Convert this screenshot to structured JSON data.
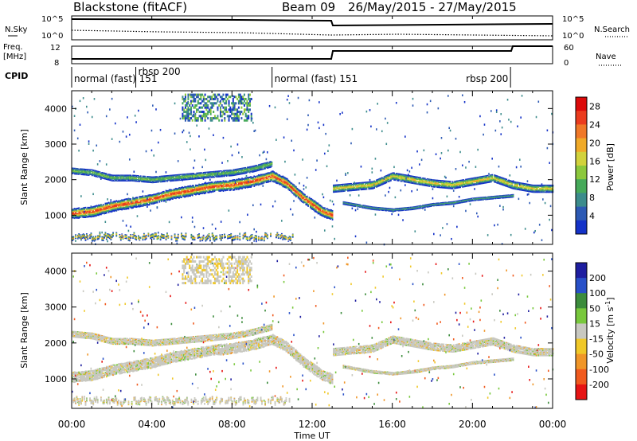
{
  "header": {
    "radar": "Blackstone (fitACF)",
    "beam": "Beam 09",
    "period": "26/May/2015 - 27/May/2015"
  },
  "strips": {
    "nsky_label": "N.Sky",
    "nsearch_label": "N.Search",
    "nsky_ticks": [
      "10^5",
      "10^0"
    ],
    "freq_label": "Freq.",
    "freq_unit": "[MHz]",
    "freq_ticks": [
      "12",
      "8"
    ],
    "nave_label": "Nave",
    "nave_ticks": [
      "60",
      "0"
    ],
    "cpid_label": "CPID"
  },
  "cpid_segments": [
    {
      "label": "normal (fast) 151",
      "start_h": 0.0,
      "end_h": 3.2
    },
    {
      "label": "rbsp 200",
      "start_h": 3.2,
      "end_h": 10.0
    },
    {
      "label": "normal (fast) 151",
      "start_h": 10.0,
      "end_h": 21.9
    },
    {
      "label": "rbsp 200",
      "start_h": 21.9,
      "end_h": 24.0
    }
  ],
  "chart_data": [
    {
      "type": "heatmap",
      "name": "Power",
      "ylabel": "Slant Range [km]",
      "ylim": [
        180,
        4500
      ],
      "yticks": [
        1000,
        2000,
        3000,
        4000
      ],
      "colorbar_label": "Power [dB]",
      "colorbar_ticks": [
        4,
        8,
        12,
        16,
        20,
        24,
        28
      ],
      "colorbar_range": [
        0,
        30
      ],
      "colors": [
        "#1432c8",
        "#2d5ab4",
        "#3c8c8c",
        "#46aa5a",
        "#8cc83c",
        "#d2d23c",
        "#f0aa28",
        "#f07828",
        "#eb3c1e",
        "#dc0a0a"
      ]
    },
    {
      "type": "heatmap",
      "name": "Velocity",
      "ylabel": "Slant Range [km]",
      "ylim": [
        180,
        4500
      ],
      "yticks": [
        1000,
        2000,
        3000,
        4000
      ],
      "colorbar_label": "Velocity [m s^-1]",
      "colorbar_ticks": [
        "200",
        "100",
        "50",
        "15",
        "-15",
        "-50",
        "-100",
        "-200"
      ],
      "colors": [
        "#1e1ea0",
        "#2850c8",
        "#3c8c3c",
        "#78c83c",
        "#c8c8c0",
        "#f0c828",
        "#f09628",
        "#f05a1e",
        "#e61414"
      ]
    }
  ],
  "time_axis": {
    "label": "Time UT",
    "ticks": [
      "00:00",
      "04:00",
      "08:00",
      "12:00",
      "16:00",
      "20:00",
      "00:00"
    ]
  },
  "echo_bands": [
    {
      "name": "main-band",
      "points": [
        [
          0,
          1050
        ],
        [
          1,
          1100
        ],
        [
          2,
          1250
        ],
        [
          3,
          1350
        ],
        [
          4,
          1450
        ],
        [
          5,
          1600
        ],
        [
          6,
          1700
        ],
        [
          7,
          1800
        ],
        [
          8,
          1850
        ],
        [
          9,
          1950
        ],
        [
          10,
          2100
        ],
        [
          10.7,
          1900
        ],
        [
          11.5,
          1500
        ],
        [
          12.5,
          1100
        ],
        [
          13,
          1000
        ]
      ]
    },
    {
      "name": "upper-band",
      "points": [
        [
          0,
          2250
        ],
        [
          1,
          2200
        ],
        [
          2,
          2050
        ],
        [
          3,
          2050
        ],
        [
          4,
          2000
        ],
        [
          5,
          2050
        ],
        [
          6,
          2100
        ],
        [
          7,
          2150
        ],
        [
          8,
          2200
        ],
        [
          9,
          2300
        ],
        [
          10,
          2450
        ]
      ]
    },
    {
      "name": "evening-band",
      "points": [
        [
          13,
          1750
        ],
        [
          14,
          1800
        ],
        [
          15,
          1850
        ],
        [
          16,
          2100
        ],
        [
          17,
          2000
        ],
        [
          18,
          1900
        ],
        [
          19,
          1850
        ],
        [
          20,
          1950
        ],
        [
          21,
          2050
        ],
        [
          22,
          1850
        ],
        [
          23,
          1750
        ],
        [
          24,
          1750
        ]
      ]
    },
    {
      "name": "lower-band",
      "points": [
        [
          13.5,
          1350
        ],
        [
          15,
          1200
        ],
        [
          16,
          1150
        ],
        [
          17,
          1200
        ],
        [
          18,
          1300
        ],
        [
          19,
          1350
        ],
        [
          20,
          1450
        ],
        [
          21,
          1500
        ],
        [
          22,
          1550
        ]
      ]
    }
  ]
}
